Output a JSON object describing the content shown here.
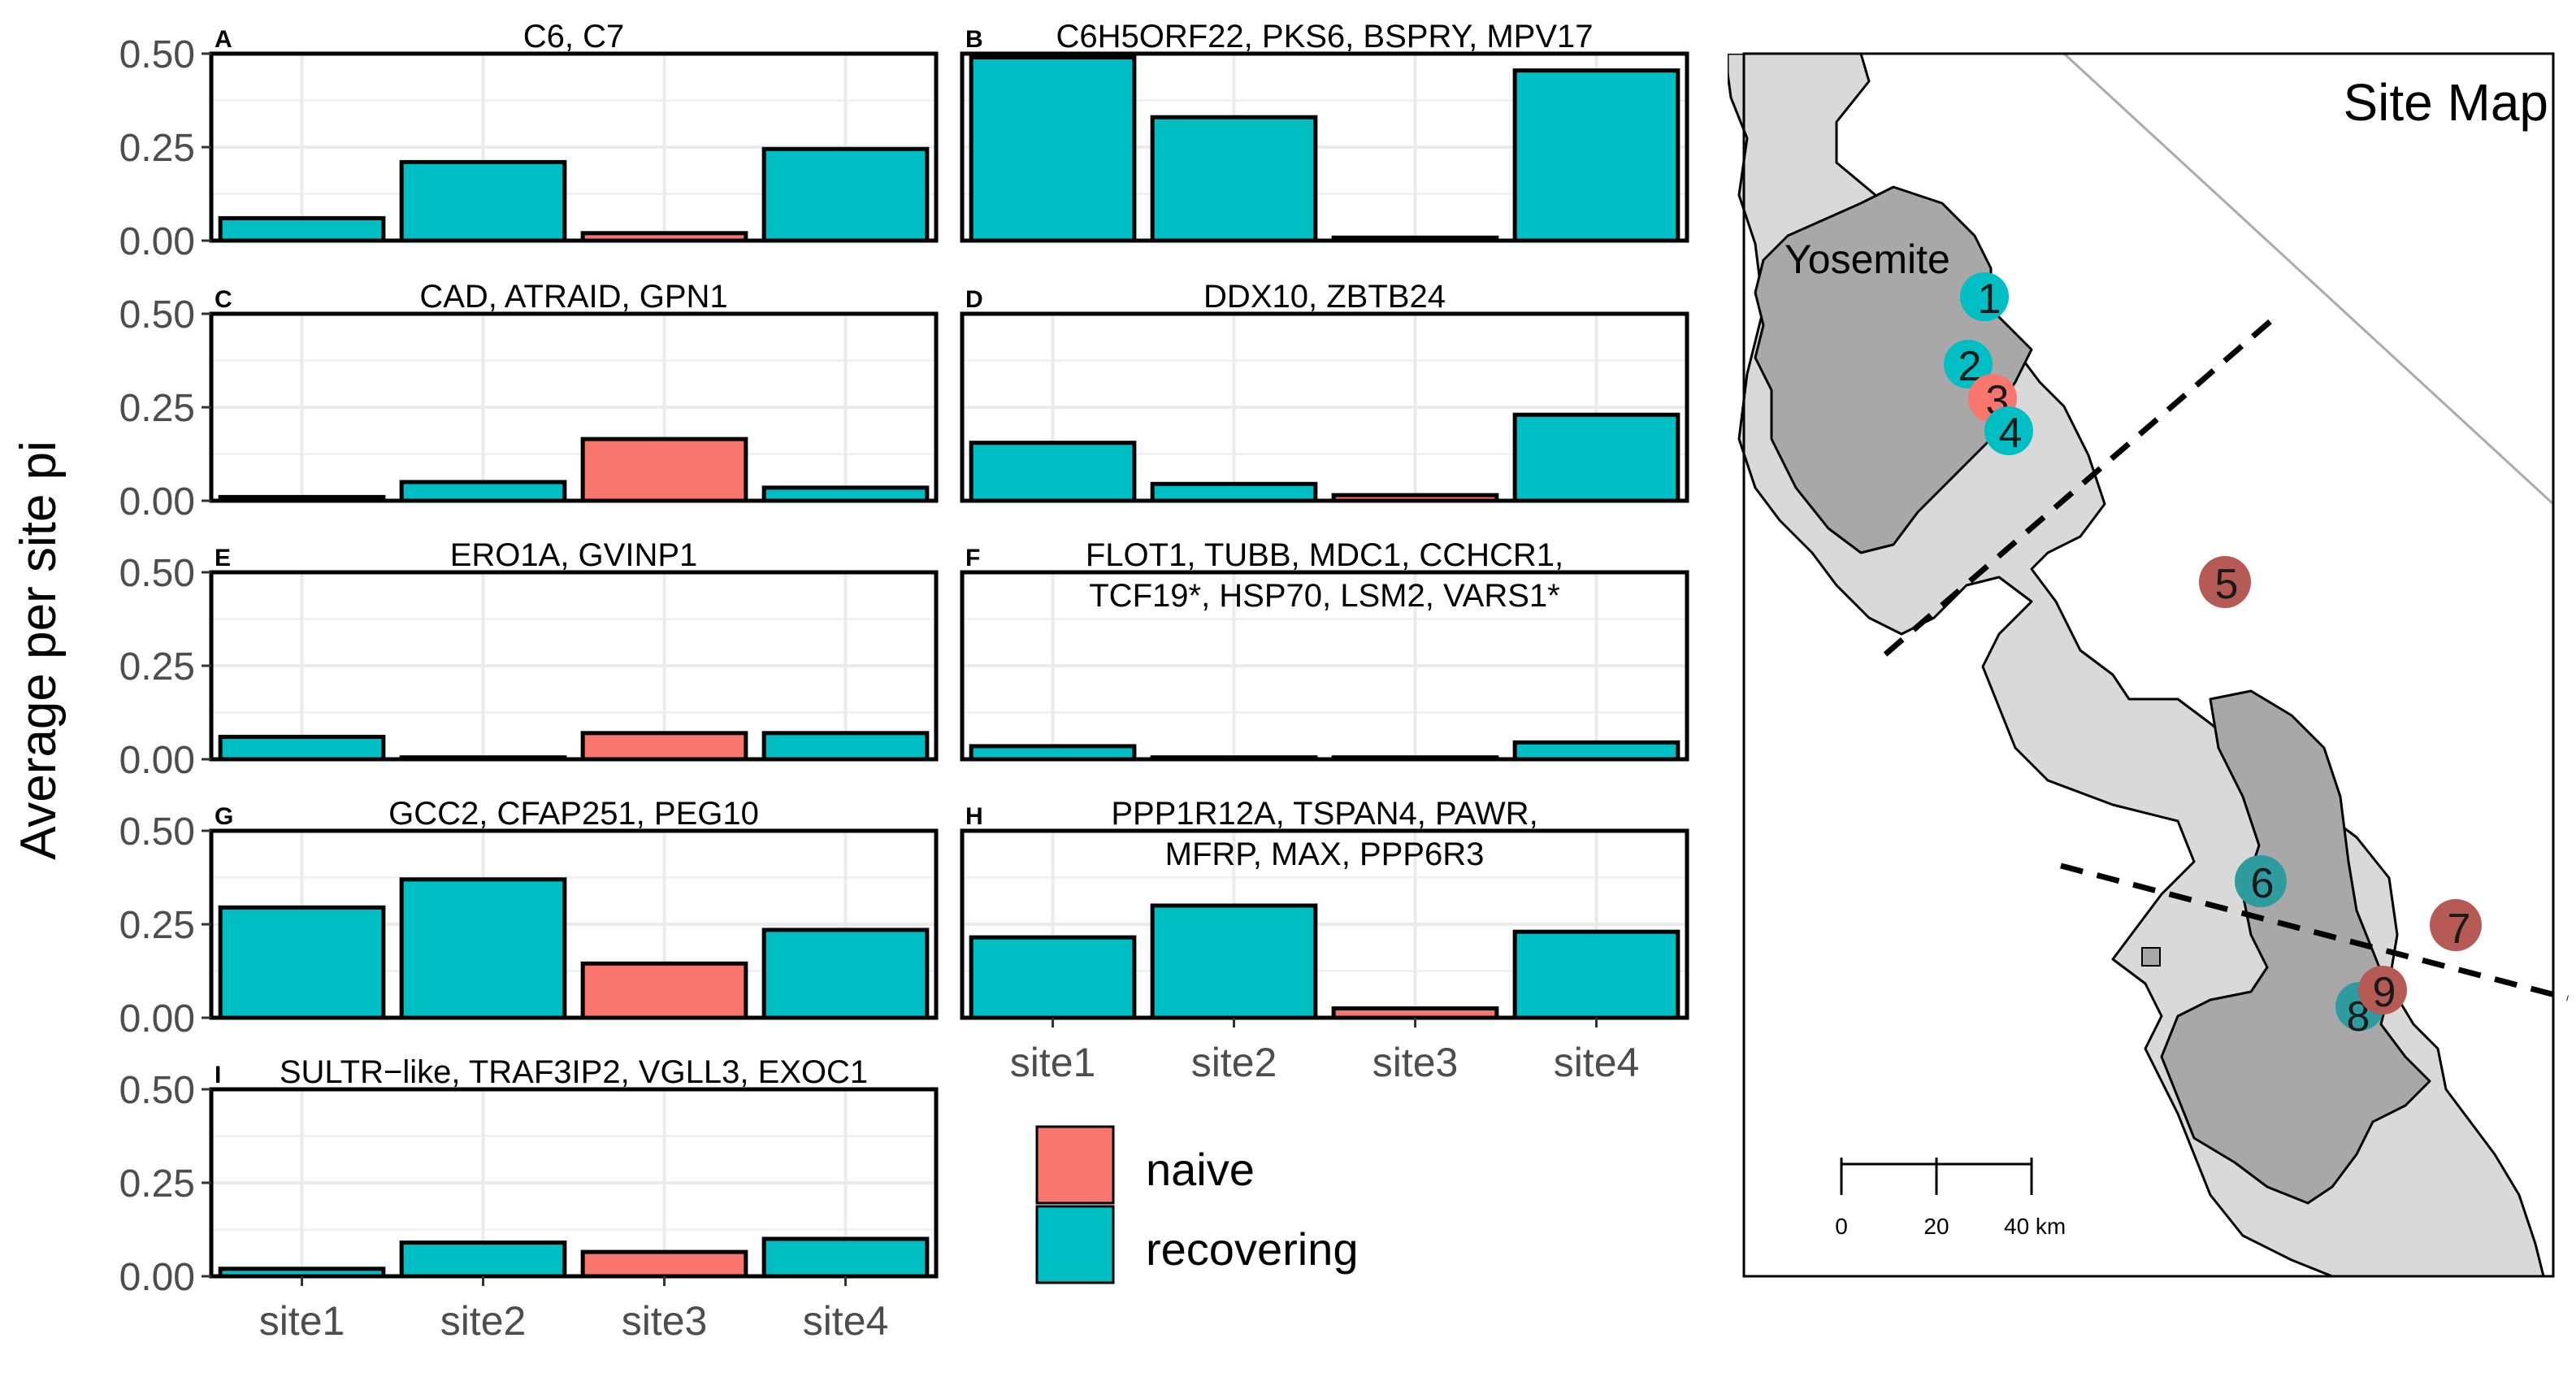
{
  "colors": {
    "naive": "#F8766D",
    "recovering": "#00BFC4",
    "grid": "#EBEBEB",
    "axis_text": "#4D4D4D",
    "map_land": "#D9D9D9",
    "map_park": "#A8A8A8",
    "site_naive_map": "#B55A55",
    "site_recovering_map": "#2E9C9F"
  },
  "y_axis_title": "Average per site pi",
  "chart_data": {
    "type": "bar",
    "categories": [
      "site1",
      "site2",
      "site3",
      "site4"
    ],
    "ylim": [
      0,
      0.5
    ],
    "yticks": [
      "0.00",
      "0.25",
      "0.50"
    ],
    "legend": [
      {
        "key": "naive",
        "label": "naive"
      },
      {
        "key": "recovering",
        "label": "recovering"
      }
    ],
    "panels": [
      {
        "tag": "A",
        "title": [
          "C6, C7"
        ],
        "values": [
          0.06,
          0.21,
          0.02,
          0.245
        ],
        "groups": [
          "recovering",
          "recovering",
          "naive",
          "recovering"
        ]
      },
      {
        "tag": "B",
        "title": [
          "C6H5ORF22, PKS6, BSPRY, MPV17"
        ],
        "values": [
          0.49,
          0.33,
          0.008,
          0.455
        ],
        "groups": [
          "recovering",
          "recovering",
          "naive",
          "recovering"
        ]
      },
      {
        "tag": "C",
        "title": [
          "CAD, ATRAID, GPN1"
        ],
        "values": [
          0.01,
          0.05,
          0.165,
          0.035
        ],
        "groups": [
          "recovering",
          "recovering",
          "naive",
          "recovering"
        ]
      },
      {
        "tag": "D",
        "title": [
          "DDX10, ZBTB24"
        ],
        "values": [
          0.155,
          0.045,
          0.015,
          0.23
        ],
        "groups": [
          "recovering",
          "recovering",
          "naive",
          "recovering"
        ]
      },
      {
        "tag": "E",
        "title": [
          "ERO1A, GVINP1"
        ],
        "values": [
          0.06,
          0.005,
          0.07,
          0.07
        ],
        "groups": [
          "recovering",
          "recovering",
          "naive",
          "recovering"
        ]
      },
      {
        "tag": "F",
        "title": [
          "FLOT1, TUBB, MDC1, CCHCR1,",
          "TCF19*, HSP70, LSM2, VARS1*"
        ],
        "values": [
          0.035,
          0.005,
          0.005,
          0.045
        ],
        "groups": [
          "recovering",
          "recovering",
          "naive",
          "recovering"
        ]
      },
      {
        "tag": "G",
        "title": [
          "GCC2, CFAP251, PEG10"
        ],
        "values": [
          0.295,
          0.37,
          0.145,
          0.235
        ],
        "groups": [
          "recovering",
          "recovering",
          "naive",
          "recovering"
        ]
      },
      {
        "tag": "H",
        "title": [
          "PPP1R12A, TSPAN4, PAWR,",
          "MFRP, MAX, PPP6R3"
        ],
        "values": [
          0.215,
          0.3,
          0.025,
          0.23
        ],
        "groups": [
          "recovering",
          "recovering",
          "naive",
          "recovering"
        ]
      },
      {
        "tag": "I",
        "title": [
          "SULTR−like, TRAF3IP2, VGLL3, EXOC1"
        ],
        "values": [
          0.02,
          0.09,
          0.065,
          0.1
        ],
        "groups": [
          "recovering",
          "recovering",
          "naive",
          "recovering"
        ]
      }
    ]
  },
  "map": {
    "title": "Site Map",
    "park_label": "Yosemite",
    "scale_labels": [
      "0",
      "20",
      "40 km"
    ],
    "sites": [
      {
        "label": "1",
        "group": "recovering"
      },
      {
        "label": "2",
        "group": "recovering"
      },
      {
        "label": "3",
        "group": "naive"
      },
      {
        "label": "4",
        "group": "recovering"
      },
      {
        "label": "5",
        "group": "naive"
      },
      {
        "label": "6",
        "group": "recovering"
      },
      {
        "label": "7",
        "group": "naive"
      },
      {
        "label": "8",
        "group": "recovering"
      },
      {
        "label": "9",
        "group": "naive"
      }
    ]
  }
}
